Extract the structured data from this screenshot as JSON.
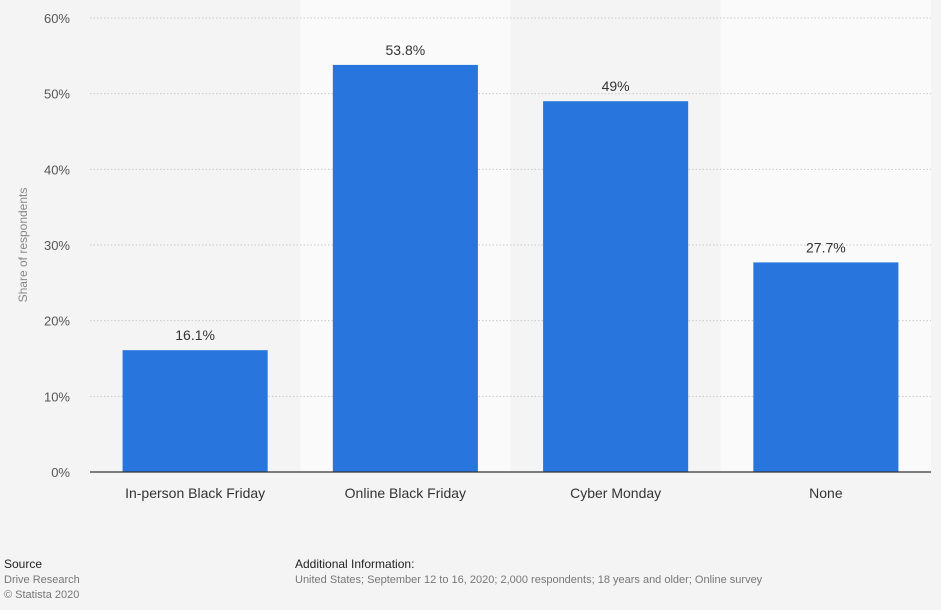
{
  "chart_data": {
    "type": "bar",
    "categories": [
      "In-person Black Friday",
      "Online Black Friday",
      "Cyber Monday",
      "None"
    ],
    "values": [
      16.1,
      53.8,
      49,
      27.7
    ],
    "value_labels": [
      "16.1%",
      "53.8%",
      "49%",
      "27.7%"
    ],
    "ylabel": "Share of respondents",
    "ylim": [
      0,
      60
    ],
    "yticks": [
      0,
      10,
      20,
      30,
      40,
      50,
      60
    ],
    "ytick_labels": [
      "0%",
      "10%",
      "20%",
      "30%",
      "40%",
      "50%",
      "60%"
    ],
    "grid": true,
    "bar_color": "#2876dd"
  },
  "footer": {
    "source_heading": "Source",
    "source_name": "Drive Research",
    "copyright": "© Statista 2020",
    "additional_heading": "Additional Information:",
    "additional_text": "United States; September 12 to 16, 2020; 2,000 respondents; 18 years and older; Online survey"
  }
}
